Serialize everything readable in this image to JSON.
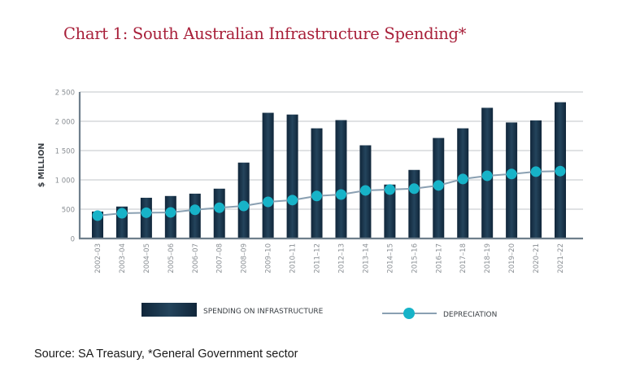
{
  "title": "Chart 1: South Australian Infrastructure Spending*",
  "source": "Source: SA Treasury,  *General Government sector",
  "colors": {
    "title": "#a8203a",
    "bar": "#1b3348",
    "line": "#8aa0b2",
    "marker": "#17b3c8",
    "grid": "#d6d9dc",
    "axis": "#6f7f8c",
    "tick_text": "#8a8f94"
  },
  "chart_data": {
    "type": "bar",
    "title": "Chart 1: South Australian Infrastructure Spending*",
    "xlabel": "",
    "ylabel": "$ MILLION",
    "ylim": [
      0,
      2500
    ],
    "yticks": [
      0,
      500,
      1000,
      1500,
      2000,
      2500
    ],
    "ytick_labels": [
      "0",
      "500",
      "1 000",
      "1 500",
      "2 000",
      "2 500"
    ],
    "grid": true,
    "legend_position": "bottom",
    "categories": [
      "2002–03",
      "2003–04",
      "2004–05",
      "2005–06",
      "2006–07",
      "2007–08",
      "2008–09",
      "2009–10",
      "2010–11",
      "2011–12",
      "2012–13",
      "2013–14",
      "2014–15",
      "2015–16",
      "2016–17",
      "2017–18",
      "2018–19",
      "2019–20",
      "2020–21",
      "2021–22"
    ],
    "series": [
      {
        "name": "SPENDING ON INFRASTRUCTURE",
        "type": "bar",
        "values": [
          460,
          545,
          695,
          725,
          765,
          850,
          1295,
          2145,
          2115,
          1880,
          2020,
          1590,
          920,
          1170,
          1715,
          1880,
          2230,
          1980,
          2015,
          2325
        ]
      },
      {
        "name": "DEPRECIATION",
        "type": "line",
        "values": [
          390,
          430,
          440,
          445,
          490,
          525,
          555,
          625,
          655,
          725,
          750,
          820,
          835,
          850,
          905,
          1015,
          1070,
          1100,
          1140,
          1150
        ]
      }
    ]
  }
}
